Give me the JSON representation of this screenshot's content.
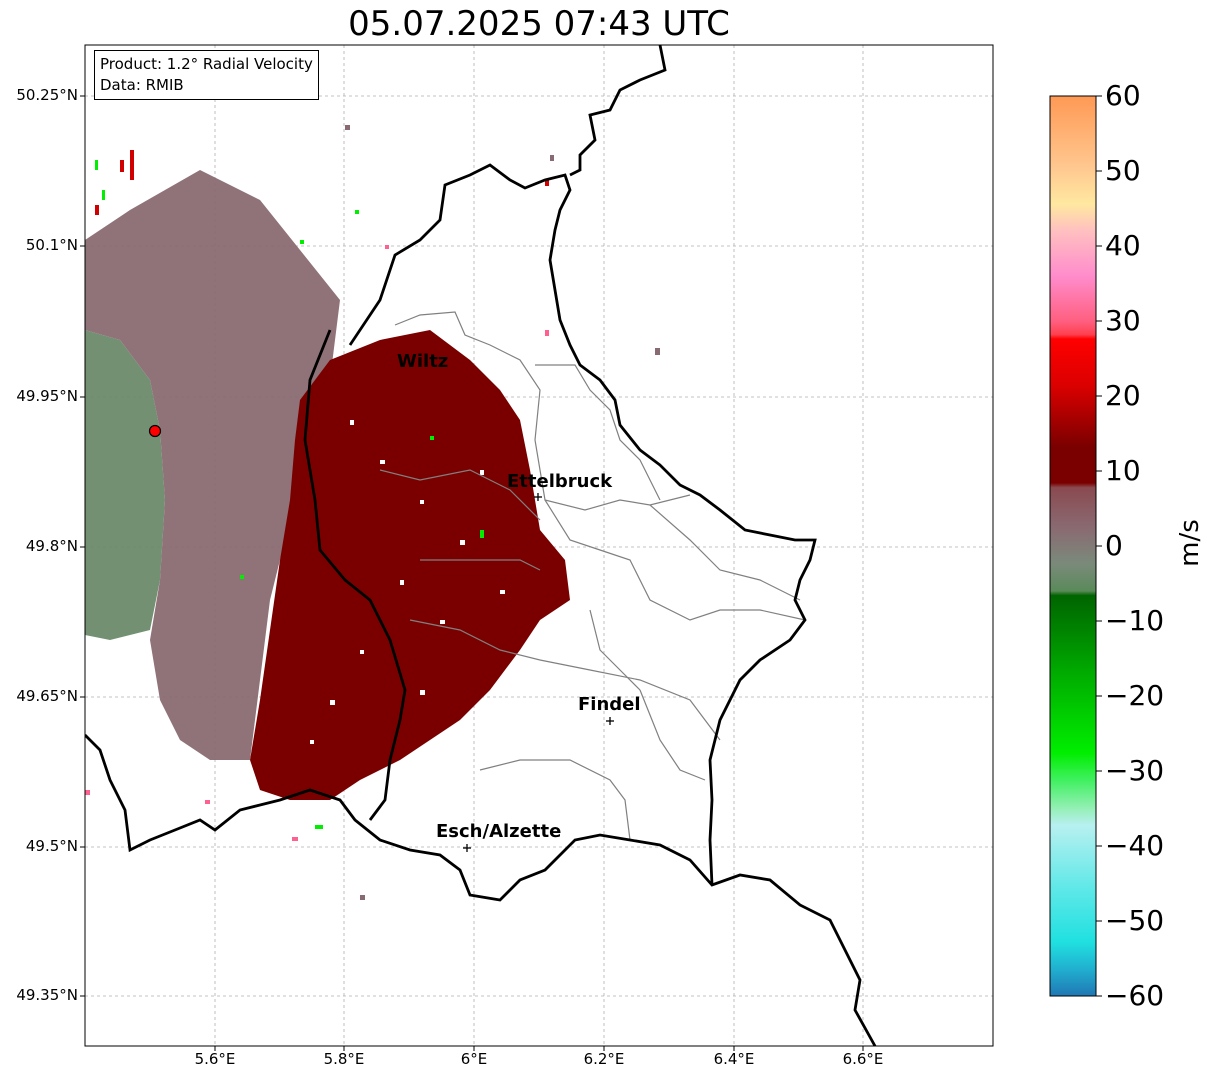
{
  "title": "05.07.2025 07:43 UTC",
  "info": {
    "product": "Product: 1.2° Radial Velocity",
    "source": "Data: RMIB"
  },
  "axes": {
    "lat_ticks": [
      "50.25°N",
      "50.1°N",
      "49.95°N",
      "49.8°N",
      "49.65°N",
      "49.5°N",
      "49.35°N"
    ],
    "lon_ticks": [
      "5.6°E",
      "5.8°E",
      "6°E",
      "6.2°E",
      "6.4°E",
      "6.6°E"
    ]
  },
  "cities": [
    {
      "name": "Wiltz"
    },
    {
      "name": "Ettelbruck"
    },
    {
      "name": "Findel"
    },
    {
      "name": "Esch/Alzette"
    }
  ],
  "radar_marker": {
    "color": "#ff0000"
  },
  "colorbar": {
    "unit": "m/s",
    "ticks": [
      "60",
      "50",
      "40",
      "30",
      "20",
      "10",
      "0",
      "−10",
      "−20",
      "−30",
      "−40",
      "−50",
      "−60"
    ],
    "colors": {
      "orange": "#ff9955",
      "peach": "#ffc890",
      "pink": "#ff8ccc",
      "red": "#ff0000",
      "dark_red": "#7a0000",
      "mauve": "#8a6a72",
      "gray_green": "#6b8a6b",
      "dark_green": "#006400",
      "bright_green": "#00ee00",
      "light_cyan": "#b0f0f0",
      "cyan": "#20e0e0",
      "blue": "#1f77b4"
    }
  }
}
